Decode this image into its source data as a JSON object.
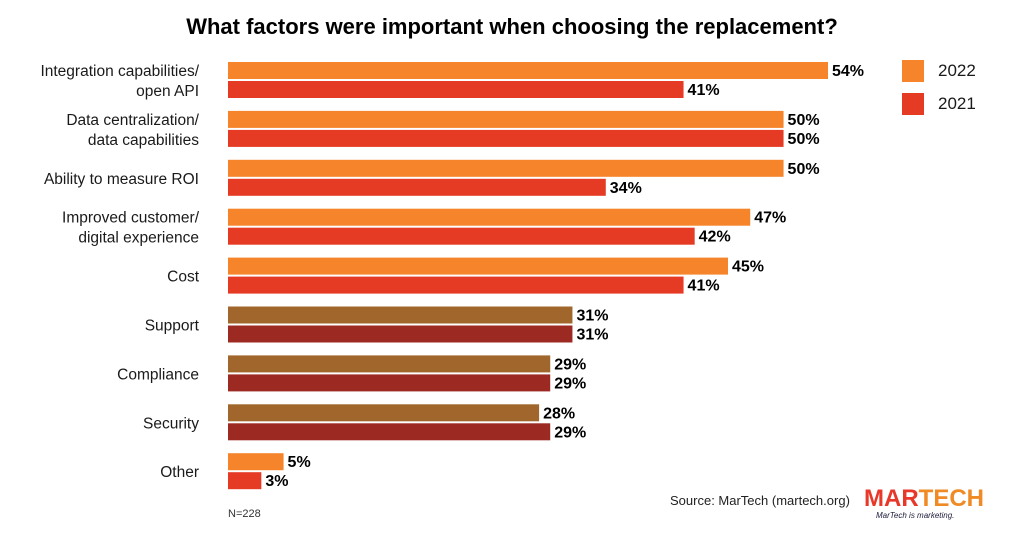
{
  "chart_data": {
    "type": "bar",
    "orientation": "horizontal",
    "title": "What factors were important when choosing the replacement?",
    "categories": [
      [
        "Integration capabilities/",
        "open API"
      ],
      [
        "Data centralization/",
        "data capabilities"
      ],
      [
        "Ability to measure ROI"
      ],
      [
        "Improved customer/",
        "digital experience"
      ],
      [
        "Cost"
      ],
      [
        "Support"
      ],
      [
        "Compliance"
      ],
      [
        "Security"
      ],
      [
        "Other"
      ]
    ],
    "series": [
      {
        "name": "2022",
        "values": [
          54,
          50,
          50,
          47,
          45,
          31,
          29,
          28,
          5
        ],
        "labels": [
          "54%",
          "50%",
          "50%",
          "47%",
          "45%",
          "31%",
          "29%",
          "28%",
          "5%"
        ]
      },
      {
        "name": "2021",
        "values": [
          41,
          50,
          34,
          42,
          41,
          31,
          29,
          29,
          3
        ],
        "labels": [
          "41%",
          "50%",
          "34%",
          "42%",
          "41%",
          "31%",
          "29%",
          "29%",
          "3%"
        ]
      }
    ],
    "colors": {
      "2022": "#f5842a",
      "2021": "#e53a24",
      "2022_muted": "#a0662b",
      "2021_muted": "#9c2a22"
    },
    "muted_categories": [
      "Support",
      "Compliance",
      "Security"
    ],
    "xlim": [
      0,
      55
    ],
    "grid": false,
    "legend_position": "top-right"
  },
  "legend": [
    {
      "label": "2022",
      "color": "#f5842a"
    },
    {
      "label": "2021",
      "color": "#e53a24"
    }
  ],
  "footnote": "N=228",
  "source": "Source: MarTech (martech.org)",
  "logo": {
    "part1": "MAR",
    "part2": "TECH",
    "tagline": "MarTech is marketing."
  }
}
